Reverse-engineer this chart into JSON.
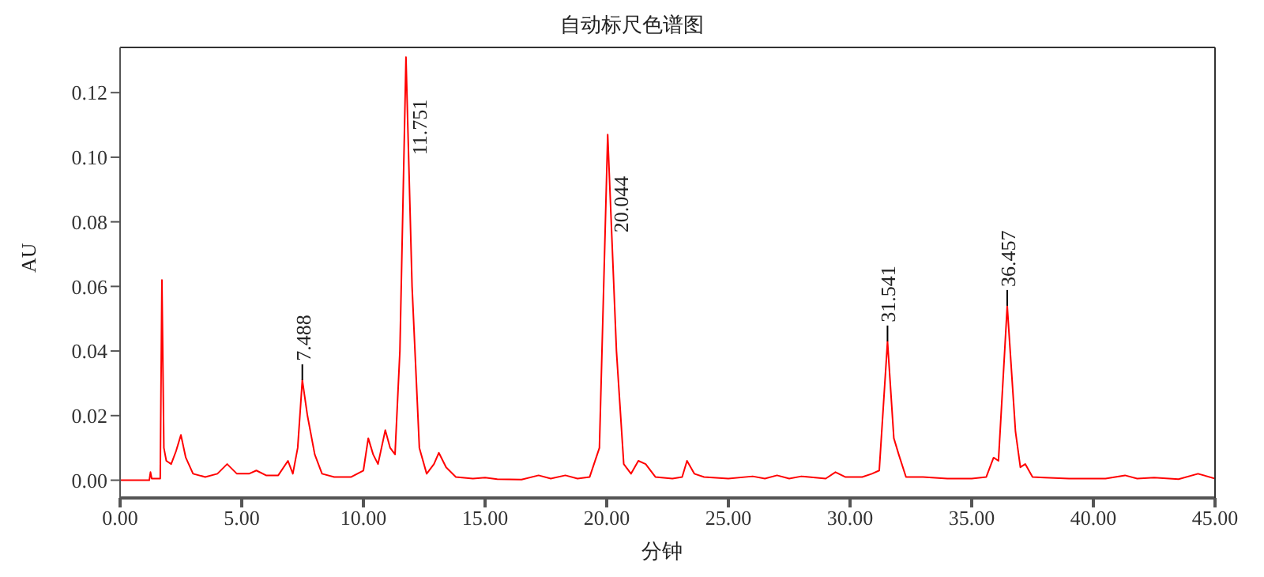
{
  "chart_data": {
    "type": "line",
    "title": "自动标尺色谱图",
    "xlabel": "分钟",
    "ylabel": "AU",
    "x": [
      0,
      1.2,
      1.25,
      1.3,
      1.65,
      1.72,
      1.8,
      1.9,
      2.1,
      2.3,
      2.5,
      2.7,
      3.0,
      3.5,
      4.0,
      4.4,
      4.8,
      5.3,
      5.6,
      6.0,
      6.5,
      6.9,
      7.1,
      7.3,
      7.49,
      7.7,
      8.0,
      8.3,
      8.8,
      9.5,
      10.0,
      10.2,
      10.4,
      10.6,
      10.9,
      11.1,
      11.3,
      11.5,
      11.75,
      12.0,
      12.3,
      12.6,
      12.9,
      13.1,
      13.4,
      13.8,
      14.5,
      15.0,
      15.5,
      16.5,
      17.2,
      17.7,
      18.3,
      18.8,
      19.3,
      19.7,
      20.04,
      20.4,
      20.7,
      21.0,
      21.3,
      21.6,
      22.0,
      22.7,
      23.1,
      23.3,
      23.6,
      24.0,
      25.0,
      26.0,
      26.5,
      27.0,
      27.5,
      28.0,
      29.0,
      29.4,
      29.8,
      30.5,
      30.9,
      31.2,
      31.54,
      31.8,
      32.0,
      32.3,
      33.0,
      34.0,
      35.0,
      35.6,
      35.9,
      36.1,
      36.46,
      36.8,
      37.0,
      37.2,
      37.5,
      38.0,
      39.0,
      40.5,
      41.3,
      41.8,
      42.5,
      43.5,
      44.3,
      45.0
    ],
    "series": [
      {
        "color": "#ff0000",
        "values": [
          0,
          0,
          0.0025,
          0.0005,
          0.0005,
          0.062,
          0.01,
          0.006,
          0.005,
          0.009,
          0.014,
          0.007,
          0.002,
          0.001,
          0.002,
          0.005,
          0.002,
          0.002,
          0.003,
          0.0015,
          0.0015,
          0.006,
          0.002,
          0.01,
          0.031,
          0.02,
          0.008,
          0.002,
          0.001,
          0.001,
          0.003,
          0.013,
          0.008,
          0.005,
          0.0155,
          0.01,
          0.008,
          0.04,
          0.131,
          0.06,
          0.01,
          0.002,
          0.005,
          0.0085,
          0.004,
          0.001,
          0.0005,
          0.0008,
          0.0003,
          0.0002,
          0.0015,
          0.0005,
          0.0015,
          0.0005,
          0.001,
          0.01,
          0.107,
          0.04,
          0.005,
          0.002,
          0.006,
          0.005,
          0.001,
          0.0005,
          0.001,
          0.006,
          0.002,
          0.001,
          0.0005,
          0.0012,
          0.0005,
          0.0015,
          0.0005,
          0.0012,
          0.0005,
          0.0025,
          0.001,
          0.001,
          0.002,
          0.003,
          0.043,
          0.013,
          0.008,
          0.001,
          0.001,
          0.0005,
          0.0005,
          0.001,
          0.007,
          0.006,
          0.054,
          0.015,
          0.004,
          0.005,
          0.001,
          0.0008,
          0.0005,
          0.0005,
          0.0015,
          0.0005,
          0.0008,
          0.0003,
          0.002,
          0.0005
        ]
      }
    ],
    "annotations": [
      {
        "text": "7.488",
        "x": 7.49,
        "y": 0.031
      },
      {
        "text": "11.751",
        "x": 11.75,
        "y": 0.131
      },
      {
        "text": "20.044",
        "x": 20.04,
        "y": 0.107
      },
      {
        "text": "31.541",
        "x": 31.54,
        "y": 0.043
      },
      {
        "text": "36.457",
        "x": 36.46,
        "y": 0.054
      }
    ],
    "xlim": [
      0,
      45
    ],
    "xticks": [
      {
        "value": 0,
        "label": "0.00"
      },
      {
        "value": 5,
        "label": "5.00"
      },
      {
        "value": 10,
        "label": "10.00"
      },
      {
        "value": 15,
        "label": "15.00"
      },
      {
        "value": 20,
        "label": "20.00"
      },
      {
        "value": 25,
        "label": "25.00"
      },
      {
        "value": 30,
        "label": "30.00"
      },
      {
        "value": 35,
        "label": "35.00"
      },
      {
        "value": 40,
        "label": "40.00"
      },
      {
        "value": 45,
        "label": "45.00"
      }
    ],
    "ylim": [
      -0.0055,
      0.134
    ],
    "yticks": [
      {
        "value": 0,
        "label": "0.00"
      },
      {
        "value": 0.02,
        "label": "0.02"
      },
      {
        "value": 0.04,
        "label": "0.04"
      },
      {
        "value": 0.06,
        "label": "0.06"
      },
      {
        "value": 0.08,
        "label": "0.08"
      },
      {
        "value": 0.1,
        "label": "0.10"
      },
      {
        "value": 0.12,
        "label": "0.12"
      }
    ],
    "grid": false,
    "legend": false,
    "marker": "none",
    "line_style": "solid"
  }
}
